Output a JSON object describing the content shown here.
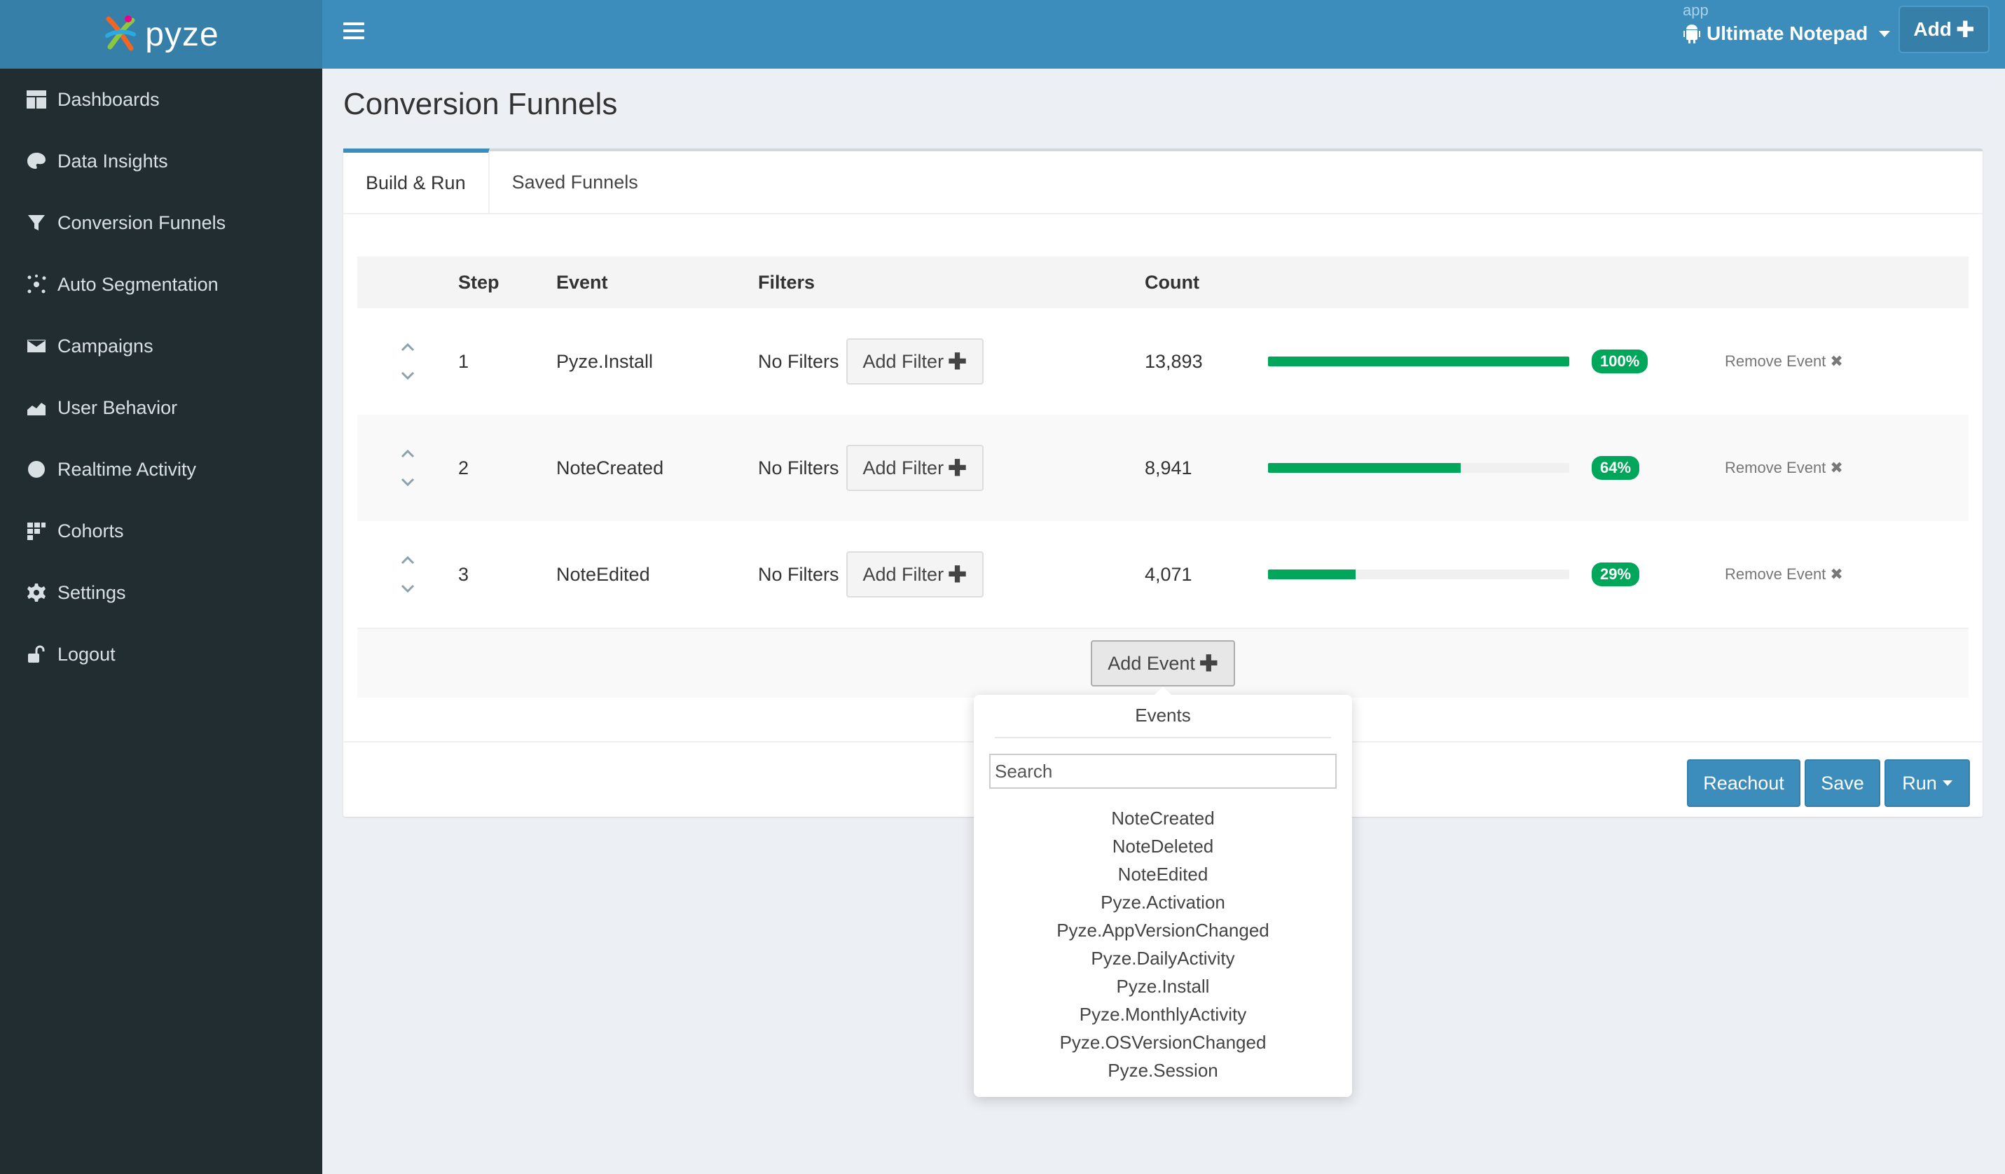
{
  "brand": {
    "name": "pyze"
  },
  "sidebar": {
    "items": [
      {
        "label": "Dashboards",
        "icon": "dashboard-icon"
      },
      {
        "label": "Data Insights",
        "icon": "palette-icon"
      },
      {
        "label": "Conversion Funnels",
        "icon": "filter-icon"
      },
      {
        "label": "Auto Segmentation",
        "icon": "segmentation-icon"
      },
      {
        "label": "Campaigns",
        "icon": "envelope-icon"
      },
      {
        "label": "User Behavior",
        "icon": "area-chart-icon"
      },
      {
        "label": "Realtime Activity",
        "icon": "globe-icon"
      },
      {
        "label": "Cohorts",
        "icon": "cohorts-icon"
      },
      {
        "label": "Settings",
        "icon": "gear-icon"
      },
      {
        "label": "Logout",
        "icon": "unlock-icon"
      }
    ]
  },
  "header": {
    "app_label": "app",
    "app_name": "Ultimate Notepad",
    "add_label": "Add"
  },
  "page": {
    "title": "Conversion Funnels"
  },
  "tabs": [
    {
      "label": "Build & Run",
      "active": true
    },
    {
      "label": "Saved Funnels",
      "active": false
    }
  ],
  "table": {
    "headers": {
      "step": "Step",
      "event": "Event",
      "filters": "Filters",
      "count": "Count"
    },
    "rows": [
      {
        "step": "1",
        "event": "Pyze.Install",
        "filters": "No Filters",
        "add_filter": "Add Filter",
        "count": "13,893",
        "percent": 100,
        "percent_label": "100%",
        "remove": "Remove Event"
      },
      {
        "step": "2",
        "event": "NoteCreated",
        "filters": "No Filters",
        "add_filter": "Add Filter",
        "count": "8,941",
        "percent": 64,
        "percent_label": "64%",
        "remove": "Remove Event"
      },
      {
        "step": "3",
        "event": "NoteEdited",
        "filters": "No Filters",
        "add_filter": "Add Filter",
        "count": "4,071",
        "percent": 29,
        "percent_label": "29%",
        "remove": "Remove Event"
      }
    ],
    "add_event": "Add Event"
  },
  "footer": {
    "reachout": "Reachout",
    "save": "Save",
    "run": "Run"
  },
  "dropdown": {
    "title": "Events",
    "search_placeholder": "Search",
    "items": [
      "NoteCreated",
      "NoteDeleted",
      "NoteEdited",
      "Pyze.Activation",
      "Pyze.AppVersionChanged",
      "Pyze.DailyActivity",
      "Pyze.Install",
      "Pyze.MonthlyActivity",
      "Pyze.OSVersionChanged",
      "Pyze.Session"
    ]
  },
  "colors": {
    "sidebar": "#222d32",
    "header": "#3c8dbc",
    "success": "#00a65a"
  }
}
